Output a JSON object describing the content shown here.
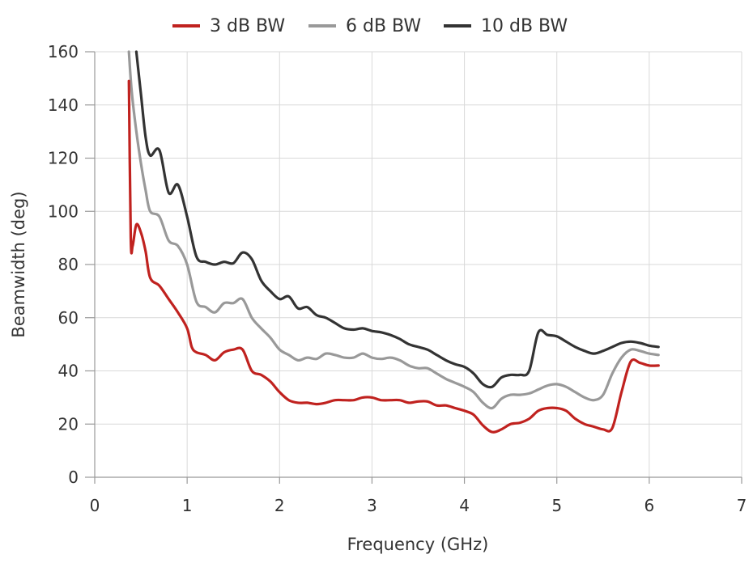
{
  "chart_data": {
    "type": "line",
    "xlabel": "Frequency (GHz)",
    "ylabel": "Beamwidth (deg)",
    "xlim": [
      0,
      7
    ],
    "ylim": [
      0,
      160
    ],
    "xticks": [
      "0",
      "1",
      "2",
      "3",
      "4",
      "5",
      "6",
      "7"
    ],
    "yticks": [
      "0",
      "20",
      "40",
      "60",
      "80",
      "100",
      "120",
      "140",
      "160"
    ],
    "grid": true,
    "legend_position": "top",
    "series": [
      {
        "name": "3 dB BW",
        "color": "#c0221f",
        "points": [
          [
            0.37,
            149
          ],
          [
            0.39,
            90
          ],
          [
            0.41,
            87
          ],
          [
            0.45,
            95
          ],
          [
            0.5,
            92
          ],
          [
            0.55,
            85
          ],
          [
            0.6,
            75
          ],
          [
            0.7,
            72
          ],
          [
            0.8,
            67
          ],
          [
            0.9,
            62
          ],
          [
            1.0,
            56
          ],
          [
            1.05,
            49
          ],
          [
            1.1,
            47
          ],
          [
            1.2,
            46
          ],
          [
            1.3,
            44
          ],
          [
            1.4,
            47
          ],
          [
            1.5,
            48
          ],
          [
            1.6,
            48
          ],
          [
            1.7,
            40
          ],
          [
            1.8,
            38.5
          ],
          [
            1.9,
            36
          ],
          [
            2.0,
            32
          ],
          [
            2.1,
            29
          ],
          [
            2.2,
            28
          ],
          [
            2.3,
            28
          ],
          [
            2.4,
            27.5
          ],
          [
            2.5,
            28
          ],
          [
            2.6,
            29
          ],
          [
            2.7,
            29
          ],
          [
            2.8,
            29
          ],
          [
            2.9,
            30
          ],
          [
            3.0,
            30
          ],
          [
            3.1,
            29
          ],
          [
            3.2,
            29
          ],
          [
            3.3,
            29
          ],
          [
            3.4,
            28
          ],
          [
            3.5,
            28.5
          ],
          [
            3.6,
            28.5
          ],
          [
            3.7,
            27
          ],
          [
            3.8,
            27
          ],
          [
            3.9,
            26
          ],
          [
            4.0,
            25
          ],
          [
            4.1,
            23.5
          ],
          [
            4.2,
            19.5
          ],
          [
            4.3,
            17
          ],
          [
            4.4,
            18
          ],
          [
            4.5,
            20
          ],
          [
            4.6,
            20.5
          ],
          [
            4.7,
            22
          ],
          [
            4.8,
            25
          ],
          [
            4.9,
            26
          ],
          [
            5.0,
            26
          ],
          [
            5.1,
            25
          ],
          [
            5.2,
            22
          ],
          [
            5.3,
            20
          ],
          [
            5.4,
            19
          ],
          [
            5.5,
            18
          ],
          [
            5.6,
            18.5
          ],
          [
            5.7,
            32
          ],
          [
            5.8,
            43.5
          ],
          [
            5.9,
            43
          ],
          [
            6.0,
            42
          ],
          [
            6.1,
            42
          ]
        ]
      },
      {
        "name": "6 dB BW",
        "color": "#999999",
        "points": [
          [
            0.37,
            160
          ],
          [
            0.4,
            145
          ],
          [
            0.45,
            130
          ],
          [
            0.5,
            118
          ],
          [
            0.55,
            108
          ],
          [
            0.6,
            100
          ],
          [
            0.7,
            98
          ],
          [
            0.8,
            89
          ],
          [
            0.9,
            87
          ],
          [
            1.0,
            80
          ],
          [
            1.1,
            66
          ],
          [
            1.2,
            64
          ],
          [
            1.3,
            62
          ],
          [
            1.4,
            65.5
          ],
          [
            1.5,
            65.5
          ],
          [
            1.6,
            67
          ],
          [
            1.7,
            60
          ],
          [
            1.8,
            56
          ],
          [
            1.9,
            52.5
          ],
          [
            2.0,
            48
          ],
          [
            2.1,
            46
          ],
          [
            2.2,
            44
          ],
          [
            2.3,
            45
          ],
          [
            2.4,
            44.5
          ],
          [
            2.5,
            46.5
          ],
          [
            2.6,
            46
          ],
          [
            2.7,
            45
          ],
          [
            2.8,
            45
          ],
          [
            2.9,
            46.5
          ],
          [
            3.0,
            45
          ],
          [
            3.1,
            44.5
          ],
          [
            3.2,
            45
          ],
          [
            3.3,
            44
          ],
          [
            3.4,
            42
          ],
          [
            3.5,
            41
          ],
          [
            3.6,
            41
          ],
          [
            3.7,
            39
          ],
          [
            3.8,
            37
          ],
          [
            3.9,
            35.5
          ],
          [
            4.0,
            34
          ],
          [
            4.1,
            32
          ],
          [
            4.2,
            28
          ],
          [
            4.3,
            26
          ],
          [
            4.4,
            29.5
          ],
          [
            4.5,
            31
          ],
          [
            4.6,
            31
          ],
          [
            4.7,
            31.5
          ],
          [
            4.8,
            33
          ],
          [
            4.9,
            34.5
          ],
          [
            5.0,
            35
          ],
          [
            5.1,
            34
          ],
          [
            5.2,
            32
          ],
          [
            5.3,
            30
          ],
          [
            5.4,
            29
          ],
          [
            5.5,
            31
          ],
          [
            5.6,
            39
          ],
          [
            5.7,
            45
          ],
          [
            5.8,
            48
          ],
          [
            5.9,
            47.5
          ],
          [
            6.0,
            46.5
          ],
          [
            6.1,
            46
          ]
        ]
      },
      {
        "name": "10 dB BW",
        "color": "#333333",
        "points": [
          [
            0.45,
            160
          ],
          [
            0.5,
            144
          ],
          [
            0.55,
            128
          ],
          [
            0.6,
            121
          ],
          [
            0.7,
            123
          ],
          [
            0.8,
            107
          ],
          [
            0.9,
            110
          ],
          [
            1.0,
            98
          ],
          [
            1.1,
            83
          ],
          [
            1.2,
            81
          ],
          [
            1.3,
            80
          ],
          [
            1.4,
            81
          ],
          [
            1.5,
            80.5
          ],
          [
            1.6,
            84.5
          ],
          [
            1.7,
            82
          ],
          [
            1.8,
            74
          ],
          [
            1.9,
            70
          ],
          [
            2.0,
            67
          ],
          [
            2.1,
            68
          ],
          [
            2.2,
            63.5
          ],
          [
            2.3,
            64
          ],
          [
            2.4,
            61
          ],
          [
            2.5,
            60
          ],
          [
            2.6,
            58
          ],
          [
            2.7,
            56
          ],
          [
            2.8,
            55.5
          ],
          [
            2.9,
            56
          ],
          [
            3.0,
            55
          ],
          [
            3.1,
            54.5
          ],
          [
            3.2,
            53.5
          ],
          [
            3.3,
            52
          ],
          [
            3.4,
            50
          ],
          [
            3.5,
            49
          ],
          [
            3.6,
            48
          ],
          [
            3.7,
            46
          ],
          [
            3.8,
            44
          ],
          [
            3.9,
            42.5
          ],
          [
            4.0,
            41.5
          ],
          [
            4.1,
            39
          ],
          [
            4.2,
            35
          ],
          [
            4.3,
            34
          ],
          [
            4.4,
            37.5
          ],
          [
            4.5,
            38.5
          ],
          [
            4.6,
            38.5
          ],
          [
            4.7,
            40
          ],
          [
            4.8,
            54.5
          ],
          [
            4.9,
            53.5
          ],
          [
            5.0,
            53
          ],
          [
            5.1,
            51
          ],
          [
            5.2,
            49
          ],
          [
            5.3,
            47.5
          ],
          [
            5.4,
            46.5
          ],
          [
            5.5,
            47.5
          ],
          [
            5.6,
            49
          ],
          [
            5.7,
            50.5
          ],
          [
            5.8,
            51
          ],
          [
            5.9,
            50.5
          ],
          [
            6.0,
            49.5
          ],
          [
            6.1,
            49
          ]
        ]
      }
    ]
  }
}
